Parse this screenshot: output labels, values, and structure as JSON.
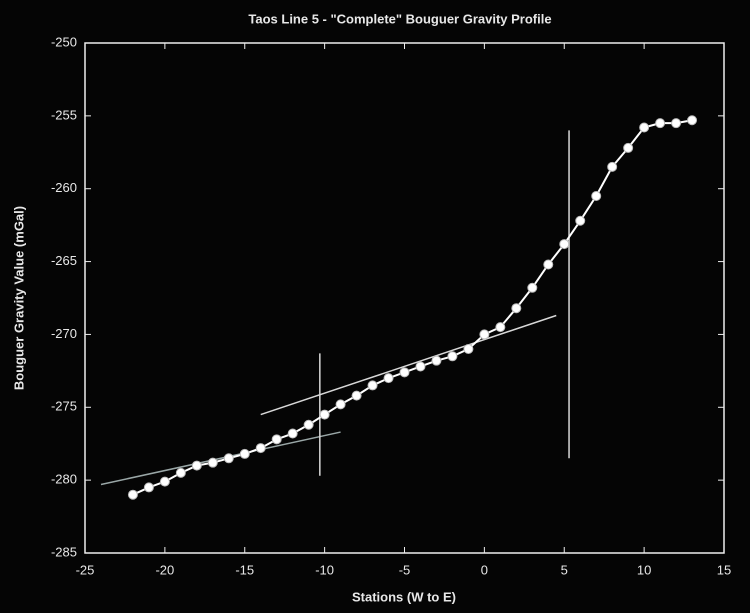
{
  "chart_data": {
    "type": "line",
    "title": "Taos Line 5 - \"Complete\" Bouguer Gravity Profile",
    "x_label": "Stations (W to E)",
    "y_label": "Bouguer Gravity Value (mGal)",
    "x": [
      -22,
      -21,
      -20,
      -19,
      -18,
      -17,
      -16,
      -15,
      -14,
      -13,
      -12,
      -11,
      -10,
      -9,
      -8,
      -7,
      -6,
      -5,
      -4,
      -3,
      -2,
      -1,
      0,
      1,
      2,
      3,
      4,
      5,
      6,
      7,
      8,
      9,
      10,
      11,
      12,
      13
    ],
    "series": [
      {
        "color": "#ffffff",
        "values": [
          -281,
          -280.5,
          -280.1,
          -279.5,
          -279,
          -278.8,
          -278.5,
          -278.2,
          -277.8,
          -277.2,
          -276.8,
          -276.2,
          -275.5,
          -274.8,
          -274.2,
          -273.5,
          -273,
          -272.6,
          -272.2,
          -271.8,
          -271.5,
          -271,
          -270,
          -269.5,
          -268.2,
          -266.8,
          -265.2,
          -263.8,
          -262.2,
          -260.5,
          -258.5,
          -257.2,
          -255.8,
          -255.5,
          -255.5,
          -255.3
        ]
      }
    ],
    "reference_lines": [
      {
        "color": "#9aa7a7",
        "x": [
          -24,
          -9
        ],
        "y": [
          -280.3,
          -276.7
        ]
      },
      {
        "color": "#d8d8d8",
        "x": [
          -14,
          4.5
        ],
        "y": [
          -275.5,
          -268.7
        ]
      },
      {
        "color": "#d8d8d8",
        "x": [
          -10.3,
          -10.3
        ],
        "y": [
          -271.3,
          -279.7
        ]
      },
      {
        "color": "#d8d8d8",
        "x": [
          5.3,
          5.3
        ],
        "y": [
          -256,
          -278.5
        ]
      }
    ],
    "xlim": [
      -25,
      15
    ],
    "xticks": [
      -25,
      -20,
      -15,
      -10,
      -5,
      0,
      5,
      10,
      15
    ],
    "ylim": [
      -285,
      -250
    ],
    "yticks": [
      -285,
      -280,
      -275,
      -270,
      -265,
      -260,
      -255,
      -250
    ]
  }
}
